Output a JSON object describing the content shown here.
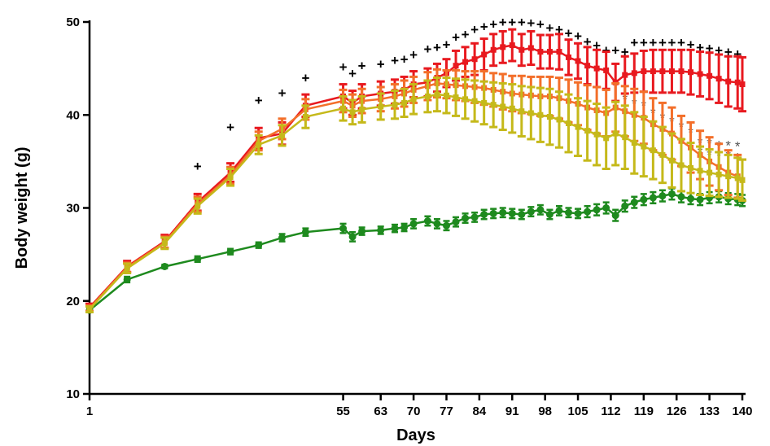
{
  "chart_data": {
    "type": "line",
    "xlabel": "Days",
    "ylabel": "Body weight (g)",
    "ylim": [
      10,
      50
    ],
    "xlim": [
      1,
      140
    ],
    "yticks": [
      10,
      20,
      30,
      40,
      50
    ],
    "xticks": [
      1,
      55,
      63,
      70,
      77,
      84,
      91,
      98,
      105,
      112,
      119,
      126,
      133,
      140
    ],
    "grid": false,
    "legend": "none",
    "x": [
      1,
      9,
      17,
      24,
      31,
      37,
      42,
      47,
      55,
      57,
      59,
      63,
      66,
      68,
      70,
      73,
      75,
      77,
      79,
      81,
      83,
      85,
      87,
      89,
      91,
      93,
      95,
      97,
      99,
      101,
      103,
      105,
      107,
      109,
      111,
      113,
      115,
      117,
      119,
      121,
      123,
      125,
      127,
      129,
      131,
      133,
      135,
      137,
      139,
      140
    ],
    "series": [
      {
        "color": "#e8191f",
        "values": [
          19.3,
          23.7,
          26.4,
          30.6,
          33.8,
          37.5,
          38.0,
          41.0,
          42.0,
          41.3,
          42.0,
          42.3,
          42.5,
          42.7,
          43.3,
          43.5,
          44.0,
          44.5,
          45.3,
          45.7,
          46.0,
          46.5,
          47.0,
          47.3,
          47.5,
          47.0,
          47.2,
          46.8,
          46.8,
          46.8,
          46.2,
          45.8,
          45.3,
          45.0,
          44.8,
          43.5,
          44.3,
          44.5,
          44.7,
          44.7,
          44.7,
          44.7,
          44.7,
          44.6,
          44.4,
          44.2,
          43.9,
          43.6,
          43.5,
          43.3
        ],
        "errors": [
          0.4,
          0.6,
          0.7,
          0.9,
          1.0,
          1.1,
          1.2,
          1.2,
          1.3,
          1.3,
          1.3,
          1.3,
          1.3,
          1.4,
          1.4,
          1.5,
          1.5,
          1.5,
          1.6,
          1.6,
          1.7,
          1.7,
          1.7,
          1.7,
          1.7,
          1.7,
          1.8,
          1.8,
          1.8,
          1.9,
          1.9,
          1.9,
          2.0,
          2.0,
          2.0,
          2.0,
          2.0,
          2.1,
          2.2,
          2.3,
          2.3,
          2.3,
          2.3,
          2.4,
          2.4,
          2.5,
          2.6,
          2.7,
          2.8,
          2.9
        ]
      },
      {
        "color": "#f36f2a",
        "values": [
          19.2,
          23.6,
          26.3,
          30.4,
          33.5,
          37.2,
          38.5,
          40.6,
          41.5,
          41.0,
          41.5,
          41.7,
          42.0,
          42.3,
          42.7,
          43.1,
          43.4,
          43.3,
          43.2,
          43.1,
          43.0,
          42.9,
          42.7,
          42.5,
          42.3,
          42.2,
          42.1,
          42.0,
          42.0,
          41.8,
          41.5,
          41.2,
          40.8,
          40.5,
          40.2,
          40.8,
          40.4,
          40.0,
          39.7,
          39.0,
          38.5,
          38.0,
          37.2,
          36.5,
          35.7,
          35.0,
          34.4,
          33.8,
          33.4,
          33.0
        ],
        "errors": [
          0.3,
          0.5,
          0.6,
          0.8,
          0.9,
          1.0,
          1.1,
          1.1,
          1.2,
          1.2,
          1.3,
          1.3,
          1.3,
          1.4,
          1.4,
          1.5,
          1.5,
          1.5,
          1.6,
          1.6,
          1.7,
          1.8,
          1.8,
          1.9,
          1.9,
          2.0,
          2.0,
          2.1,
          2.1,
          2.2,
          2.3,
          2.3,
          2.4,
          2.5,
          2.5,
          2.6,
          2.7,
          2.8,
          2.8,
          2.8,
          2.8,
          2.8,
          2.7,
          2.7,
          2.6,
          2.6,
          2.5,
          2.4,
          2.3,
          2.2
        ]
      },
      {
        "color": "#c5b91a",
        "values": [
          19.1,
          23.5,
          26.2,
          30.2,
          33.3,
          36.8,
          37.8,
          39.8,
          40.7,
          40.3,
          40.6,
          40.9,
          41.1,
          41.3,
          41.7,
          42.0,
          42.2,
          42.1,
          41.9,
          41.7,
          41.5,
          41.3,
          41.1,
          40.9,
          40.7,
          40.4,
          40.2,
          40.0,
          39.8,
          39.5,
          39.1,
          38.7,
          38.3,
          37.9,
          37.5,
          38.0,
          37.6,
          37.0,
          36.6,
          36.2,
          35.7,
          35.1,
          34.6,
          34.3,
          34.0,
          33.8,
          33.6,
          33.4,
          33.2,
          33.0
        ],
        "errors": [
          0.3,
          0.5,
          0.6,
          0.8,
          0.9,
          1.0,
          1.1,
          1.2,
          1.3,
          1.3,
          1.4,
          1.4,
          1.5,
          1.5,
          1.6,
          1.7,
          1.8,
          1.9,
          2.0,
          2.1,
          2.2,
          2.3,
          2.4,
          2.5,
          2.6,
          2.7,
          2.8,
          2.9,
          3.0,
          3.0,
          3.1,
          3.1,
          3.2,
          3.3,
          3.3,
          3.4,
          3.4,
          3.3,
          3.2,
          3.1,
          3.0,
          2.9,
          2.8,
          2.7,
          2.6,
          2.5,
          2.4,
          2.3,
          2.2,
          2.2
        ]
      },
      {
        "color": "#1e8a1e",
        "values": [
          19.0,
          22.3,
          23.7,
          24.5,
          25.3,
          26.0,
          26.8,
          27.4,
          27.8,
          26.9,
          27.5,
          27.6,
          27.8,
          27.9,
          28.3,
          28.6,
          28.3,
          28.1,
          28.5,
          28.9,
          29.0,
          29.3,
          29.4,
          29.5,
          29.4,
          29.3,
          29.6,
          29.8,
          29.3,
          29.7,
          29.5,
          29.4,
          29.6,
          29.8,
          30.0,
          29.2,
          30.2,
          30.6,
          30.9,
          31.1,
          31.3,
          31.5,
          31.2,
          31.0,
          30.9,
          31.1,
          31.2,
          31.0,
          30.9,
          30.8
        ],
        "errors": [
          0.2,
          0.3,
          0.2,
          0.3,
          0.3,
          0.3,
          0.4,
          0.4,
          0.5,
          0.5,
          0.4,
          0.4,
          0.4,
          0.4,
          0.5,
          0.5,
          0.5,
          0.5,
          0.5,
          0.5,
          0.5,
          0.5,
          0.5,
          0.5,
          0.5,
          0.5,
          0.5,
          0.5,
          0.5,
          0.5,
          0.5,
          0.5,
          0.6,
          0.6,
          0.6,
          0.6,
          0.6,
          0.6,
          0.6,
          0.6,
          0.6,
          0.6,
          0.6,
          0.6,
          0.6,
          0.6,
          0.6,
          0.6,
          0.6,
          0.6
        ]
      }
    ],
    "plus_annotations": {
      "symbol": "+",
      "color": "#000000",
      "points": [
        [
          24,
          34.5
        ],
        [
          31,
          38.7
        ],
        [
          37,
          41.6
        ],
        [
          42,
          42.4
        ],
        [
          47,
          44.0
        ],
        [
          55,
          45.2
        ],
        [
          57,
          44.5
        ],
        [
          59,
          45.3
        ],
        [
          63,
          45.5
        ],
        [
          66,
          45.9
        ],
        [
          68,
          46.0
        ],
        [
          70,
          46.5
        ],
        [
          73,
          47.1
        ],
        [
          75,
          47.3
        ],
        [
          77,
          47.6
        ],
        [
          79,
          48.4
        ],
        [
          81,
          48.7
        ],
        [
          83,
          49.2
        ],
        [
          85,
          49.5
        ],
        [
          87,
          49.8
        ],
        [
          89,
          50.0
        ],
        [
          91,
          50.0
        ],
        [
          93,
          50.0
        ],
        [
          95,
          49.9
        ],
        [
          97,
          49.8
        ],
        [
          99,
          49.4
        ],
        [
          101,
          49.2
        ],
        [
          103,
          48.8
        ],
        [
          105,
          48.5
        ],
        [
          107,
          47.9
        ],
        [
          109,
          47.5
        ],
        [
          111,
          47.0
        ],
        [
          113,
          47.0
        ],
        [
          115,
          46.8
        ],
        [
          117,
          47.8
        ],
        [
          119,
          47.8
        ],
        [
          121,
          47.8
        ],
        [
          123,
          47.8
        ],
        [
          125,
          47.8
        ],
        [
          127,
          47.8
        ],
        [
          129,
          47.6
        ],
        [
          131,
          47.3
        ],
        [
          133,
          47.2
        ],
        [
          135,
          47.0
        ],
        [
          137,
          46.8
        ],
        [
          139,
          46.6
        ]
      ]
    },
    "star_annotations": {
      "symbol": "*",
      "points": [
        [
          115,
          42.0,
          "#555555"
        ],
        [
          117,
          41.5,
          "#555555"
        ],
        [
          119,
          41.3,
          "#555555"
        ],
        [
          119,
          39.8,
          "#555555"
        ],
        [
          121,
          40.5,
          "#555555"
        ],
        [
          121,
          39.2,
          "#555555"
        ],
        [
          123,
          40.0,
          "#555555"
        ],
        [
          123,
          38.5,
          "#555555"
        ],
        [
          125,
          39.6,
          "#555555"
        ],
        [
          125,
          38.0,
          "#555555"
        ],
        [
          127,
          39.0,
          "#555555"
        ],
        [
          127,
          37.5,
          "#555555"
        ],
        [
          129,
          38.4,
          "#555555"
        ],
        [
          131,
          37.3,
          "#555555"
        ],
        [
          131,
          36.3,
          "#555555"
        ],
        [
          133,
          37.2,
          "#555555"
        ],
        [
          133,
          36.0,
          "#555555"
        ],
        [
          135,
          37.0,
          "#555555"
        ],
        [
          135,
          35.9,
          "#555555"
        ],
        [
          137,
          37.0,
          "#555555"
        ],
        [
          137,
          35.9,
          "#555555"
        ],
        [
          139,
          36.9,
          "#555555"
        ],
        [
          139,
          35.7,
          "#555555"
        ]
      ]
    }
  }
}
